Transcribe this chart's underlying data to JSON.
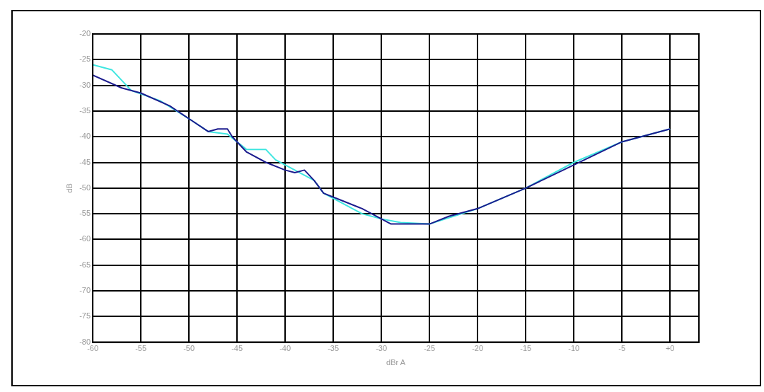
{
  "chart_data": {
    "type": "line",
    "xlabel": "dBr A",
    "ylabel": "dB",
    "xlim": [
      -60,
      3
    ],
    "xticks": [
      -60,
      -55,
      -50,
      -45,
      -40,
      -35,
      -30,
      -25,
      -20,
      -15,
      -10,
      -5,
      {
        "value": 0,
        "label": "+0"
      }
    ],
    "ylim": [
      -80,
      -20
    ],
    "yticks": [
      -80,
      -75,
      -70,
      -65,
      -60,
      -55,
      -50,
      -45,
      -40,
      -35,
      -30,
      -25,
      -20
    ],
    "grid": true,
    "legend": false,
    "marker": "none",
    "line_style": "solid",
    "series": [
      {
        "color": "#1c1c8e",
        "x": [
          -60,
          -57,
          -55,
          -52,
          -50,
          -48,
          -47,
          -46,
          -45.5,
          -44,
          -42,
          -40,
          -39,
          -38,
          -37,
          -36,
          -34,
          -32,
          -30,
          -29,
          -25,
          -23,
          -20,
          -15,
          -10,
          -5,
          0
        ],
        "values": [
          -28,
          -30.5,
          -31.5,
          -34,
          -36.5,
          -39,
          -38.5,
          -38.5,
          -40,
          -43,
          -45,
          -46.5,
          -47,
          -46.5,
          -48.5,
          -51,
          -52.5,
          -54,
          -56,
          -57,
          -57,
          -55.5,
          -54,
          -50,
          -45.5,
          -41,
          -38.5
        ]
      },
      {
        "color": "#3ee6e0",
        "x": [
          -60,
          -58,
          -56,
          -53,
          -50,
          -48,
          -46,
          -45,
          -44,
          -42,
          -41,
          -39,
          -37,
          -36,
          -34,
          -32,
          -30,
          -28,
          -25,
          -23,
          -20,
          -15,
          -10,
          -5,
          0
        ],
        "values": [
          -26,
          -27,
          -31,
          -33,
          -36.5,
          -39,
          -39.5,
          -41,
          -42.5,
          -42.5,
          -44.5,
          -46.5,
          -48.5,
          -51,
          -53,
          -55,
          -56,
          -56.7,
          -57,
          -55.8,
          -54,
          -50,
          -45,
          -41,
          -38.5
        ]
      }
    ]
  }
}
